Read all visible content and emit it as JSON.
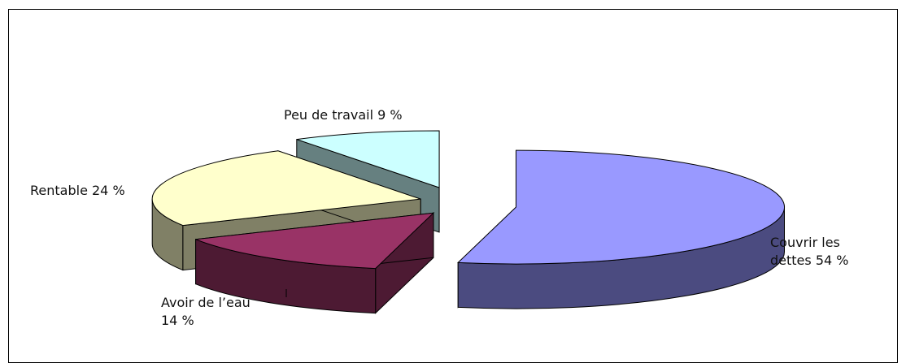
{
  "chart_data": {
    "type": "pie",
    "style": "3d-exploded",
    "title": "",
    "slices": [
      {
        "label": "Couvrir les dettes",
        "value": 54,
        "text_lines": [
          "Couvrir les",
          "dettes 54 %"
        ],
        "color": "#9999ff",
        "side_color": "#4b4b80"
      },
      {
        "label": "Avoir de l'eau",
        "value": 14,
        "text_lines": [
          "Avoir de l’eau",
          "14 %"
        ],
        "color": "#993366",
        "side_color": "#4d1a33"
      },
      {
        "label": "Rentable",
        "value": 24,
        "text_lines": [
          "Rentable 24 %"
        ],
        "color": "#ffffcc",
        "side_color": "#808066"
      },
      {
        "label": "Peu de travail",
        "value": 9,
        "text_lines": [
          "Peu de travail 9 %"
        ],
        "color": "#ccffff",
        "side_color": "#668080"
      }
    ]
  }
}
